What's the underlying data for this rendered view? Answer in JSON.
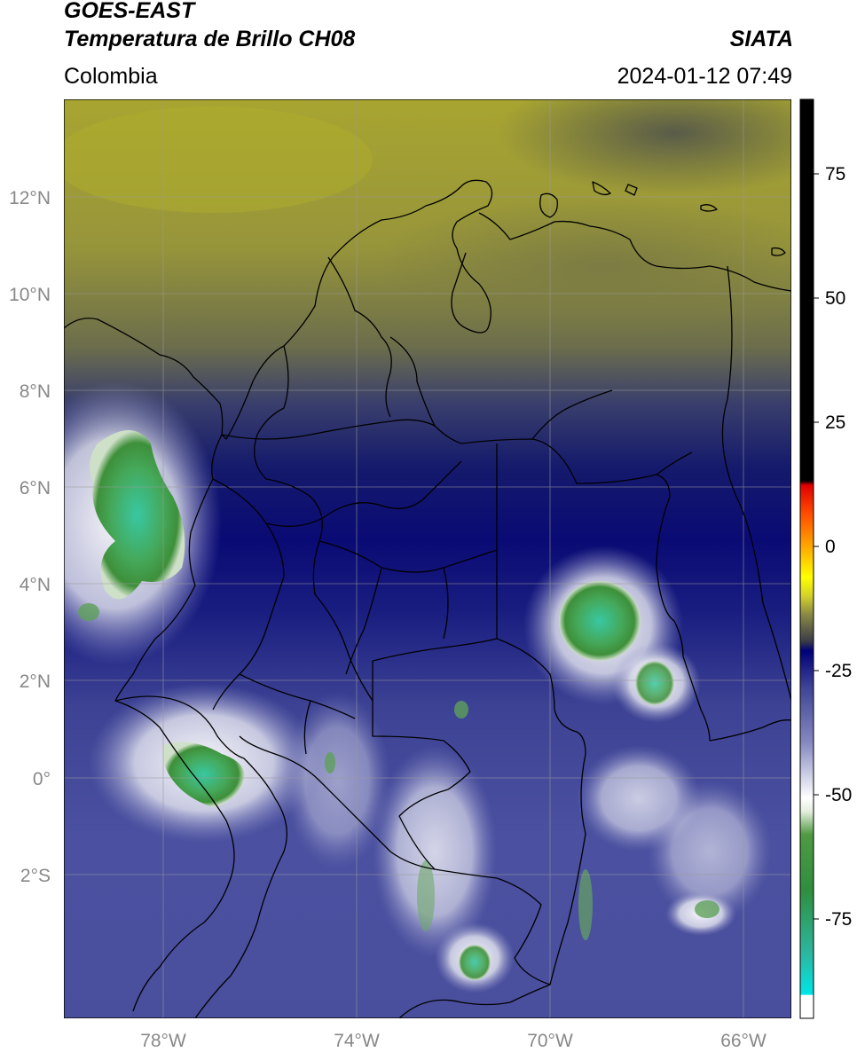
{
  "header": {
    "satellite": "GOES-EAST",
    "product": "Temperatura de Brillo CH08",
    "region": "Colombia",
    "agency": "SIATA",
    "timestamp": "2024-01-12 07:49"
  },
  "map": {
    "lat_labels": [
      "12°N",
      "10°N",
      "8°N",
      "6°N",
      "4°N",
      "2°N",
      "0°",
      "2°S"
    ],
    "lon_labels": [
      "78°W",
      "74°W",
      "70°W",
      "66°W"
    ],
    "grid": true,
    "colors": {
      "cold_tops_green": "#3f9a3c",
      "cyan_core": "#36c9a4",
      "cloud_white": "#f2f2f4",
      "navy": "#0a0a78",
      "mid_blue": "#4a4fa0",
      "olive": "#a9a832",
      "dark_olive": "#5f6146"
    }
  },
  "colorbar": {
    "tick_labels": [
      "75",
      "50",
      "25",
      "0",
      "-25",
      "-50",
      "-75"
    ],
    "ticks": [
      75,
      50,
      25,
      0,
      -25,
      -50,
      -75
    ],
    "range": [
      -95,
      90
    ]
  }
}
